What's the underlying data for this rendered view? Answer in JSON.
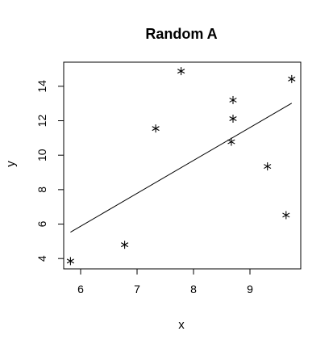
{
  "chart_data": {
    "type": "scatter",
    "title": "Random A",
    "xlabel": "x",
    "ylabel": "y",
    "xlim": [
      5.7,
      9.9
    ],
    "ylim": [
      3.4,
      15.4
    ],
    "xticks": [
      6,
      7,
      8,
      9
    ],
    "yticks": [
      4,
      6,
      8,
      10,
      12,
      14
    ],
    "grid": false,
    "legend": "none",
    "marker": "asterisk",
    "points": [
      {
        "x": 5.82,
        "y": 3.85
      },
      {
        "x": 6.78,
        "y": 4.8
      },
      {
        "x": 7.33,
        "y": 11.55
      },
      {
        "x": 7.78,
        "y": 14.88
      },
      {
        "x": 8.67,
        "y": 10.78
      },
      {
        "x": 8.7,
        "y": 13.2
      },
      {
        "x": 8.7,
        "y": 12.12
      },
      {
        "x": 9.31,
        "y": 9.35
      },
      {
        "x": 9.64,
        "y": 6.52
      },
      {
        "x": 9.74,
        "y": 14.42
      }
    ],
    "fit_line": {
      "x": [
        5.82,
        9.74
      ],
      "y": [
        5.53,
        13.02
      ]
    },
    "colors": {
      "marks": "#000000",
      "background": "#ffffff"
    }
  }
}
